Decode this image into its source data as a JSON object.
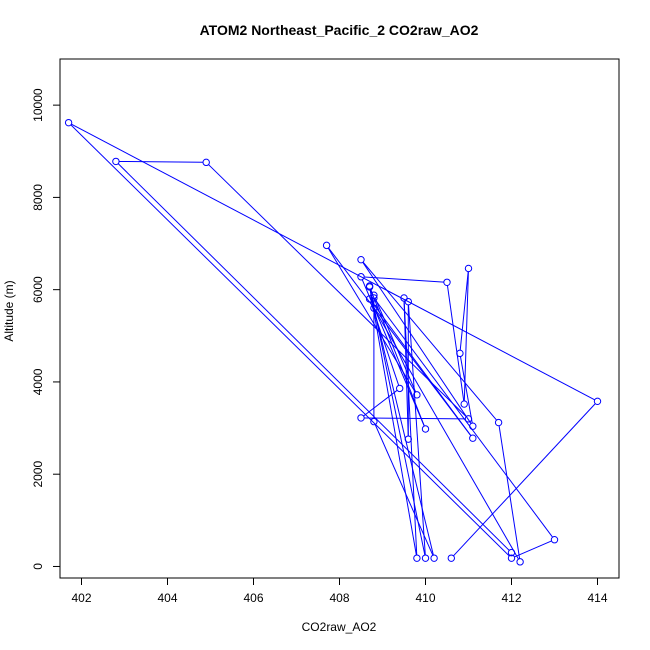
{
  "chart_data": {
    "type": "line",
    "title": "ATOM2 Northeast_Pacific_2 CO2raw_AO2",
    "xlabel": "CO2raw_AO2",
    "ylabel": "Altitude (m)",
    "xlim": [
      401.5,
      414.5
    ],
    "ylim": [
      -250,
      11000
    ],
    "x_ticks": [
      402,
      404,
      406,
      408,
      410,
      412,
      414
    ],
    "y_ticks": [
      0,
      2000,
      4000,
      6000,
      8000,
      10000
    ],
    "grid": false,
    "series": [
      {
        "color": "#0000ff",
        "marker": "open-circle",
        "points": [
          {
            "x": 410.6,
            "y": 180
          },
          {
            "x": 414.0,
            "y": 3580
          },
          {
            "x": 401.7,
            "y": 9620
          },
          {
            "x": 412.0,
            "y": 180
          },
          {
            "x": 413.0,
            "y": 580
          },
          {
            "x": 408.8,
            "y": 5820
          },
          {
            "x": 408.7,
            "y": 6080
          },
          {
            "x": 410.0,
            "y": 180
          },
          {
            "x": 409.6,
            "y": 5740
          },
          {
            "x": 409.6,
            "y": 2760
          },
          {
            "x": 409.5,
            "y": 5820
          },
          {
            "x": 409.8,
            "y": 180
          },
          {
            "x": 408.7,
            "y": 6060
          },
          {
            "x": 410.0,
            "y": 2980
          },
          {
            "x": 408.5,
            "y": 6280
          },
          {
            "x": 410.5,
            "y": 6160
          },
          {
            "x": 410.9,
            "y": 3520
          },
          {
            "x": 411.0,
            "y": 6460
          },
          {
            "x": 410.8,
            "y": 4620
          },
          {
            "x": 411.1,
            "y": 3040
          },
          {
            "x": 408.5,
            "y": 6650
          },
          {
            "x": 411.7,
            "y": 3120
          },
          {
            "x": 412.2,
            "y": 100
          },
          {
            "x": 408.8,
            "y": 5600
          },
          {
            "x": 410.2,
            "y": 180
          },
          {
            "x": 408.8,
            "y": 3140
          },
          {
            "x": 408.8,
            "y": 5880
          },
          {
            "x": 409.8,
            "y": 3720
          },
          {
            "x": 407.7,
            "y": 6960
          },
          {
            "x": 411.1,
            "y": 2780
          },
          {
            "x": 408.7,
            "y": 5800
          },
          {
            "x": 409.4,
            "y": 3860
          },
          {
            "x": 408.5,
            "y": 3220
          },
          {
            "x": 411.0,
            "y": 3200
          },
          {
            "x": 404.9,
            "y": 8760
          },
          {
            "x": 402.8,
            "y": 8780
          },
          {
            "x": 412.0,
            "y": 300
          }
        ]
      }
    ]
  }
}
